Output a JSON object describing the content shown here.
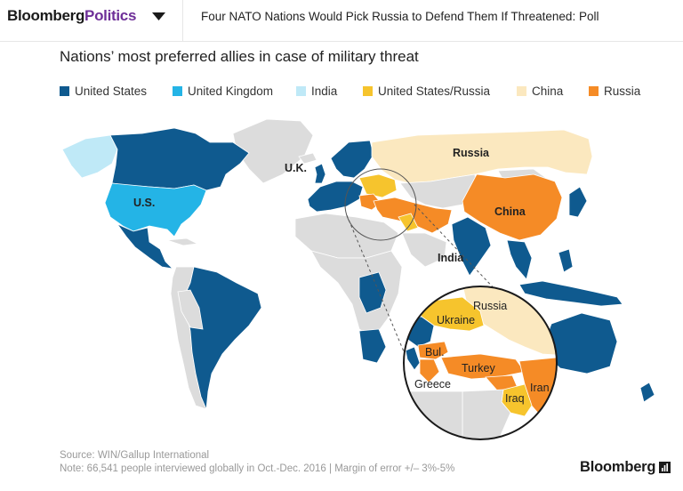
{
  "header": {
    "brand_main": "Bloomberg",
    "brand_section": "Politics",
    "headline": "Four NATO Nations Would Pick Russia to Defend Them If Threatened: Poll"
  },
  "map": {
    "title": "Nations’ most preferred allies in case of military threat",
    "legend": [
      {
        "label": "United States",
        "color": "#0f5a8f"
      },
      {
        "label": "United Kingdom",
        "color": "#24b4e6"
      },
      {
        "label": "India",
        "color": "#bfe9f7"
      },
      {
        "label": "United States/Russia",
        "color": "#f6c42d"
      },
      {
        "label": "China",
        "color": "#fbe8bf"
      },
      {
        "label": "Russia",
        "color": "#f58b26"
      }
    ],
    "no_data_color": "#dcdcdc",
    "labels": {
      "uk": "U.K.",
      "russia": "Russia",
      "us": "U.S.",
      "china": "China",
      "india": "India"
    },
    "zoom_labels": {
      "russia": "Russia",
      "ukraine": "Ukraine",
      "bulgaria": "Bul.",
      "turkey": "Turkey",
      "greece": "Greece",
      "iran": "Iran",
      "iraq": "Iraq"
    }
  },
  "footer": {
    "source": "Source: WIN/Gallup International",
    "note": "Note: 66,541 people interviewed globally in Oct.-Dec. 2016 | Margin of error +/– 3%-5%",
    "logo": "Bloomberg"
  }
}
